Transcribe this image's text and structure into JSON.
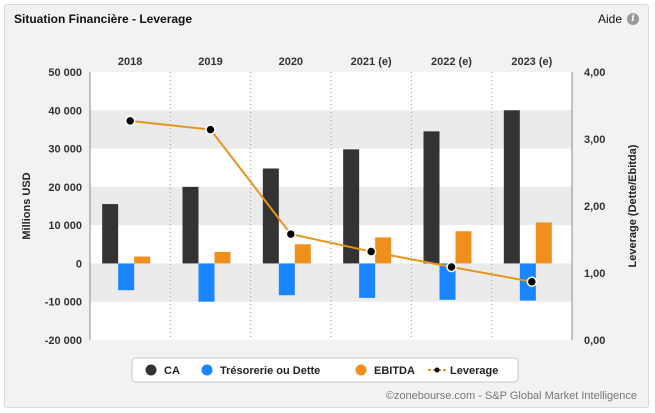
{
  "header": {
    "title": "Situation Financière - Leverage",
    "help_label": "Aide",
    "help_icon": "info-icon"
  },
  "credit": "©zonebourse.com - S&P Global Market Intelligence",
  "chart_data": {
    "type": "bar",
    "categories": [
      "2018",
      "2019",
      "2020",
      "2021 (e)",
      "2022 (e)",
      "2023 (e)"
    ],
    "y_left": {
      "label": "Millions USD",
      "range": [
        -20000,
        50000
      ],
      "ticks": [
        "-20 000",
        "-10 000",
        "0",
        "10 000",
        "20 000",
        "30 000",
        "40 000",
        "50 000"
      ]
    },
    "y_right": {
      "label": "Leverage (Dette/Ebitda)",
      "range": [
        0,
        4
      ],
      "ticks": [
        "0,00",
        "1,00",
        "2,00",
        "3,00",
        "4,00"
      ]
    },
    "series": [
      {
        "name": "CA",
        "type": "bar",
        "color": "#333333",
        "values": [
          15500,
          20000,
          24800,
          29800,
          34500,
          40000
        ]
      },
      {
        "name": "Trésorerie ou Dette",
        "type": "bar",
        "color": "#1a85ff",
        "values": [
          -7000,
          -10000,
          -8300,
          -9000,
          -9500,
          -9700
        ]
      },
      {
        "name": "EBITDA",
        "type": "bar",
        "color": "#f0901c",
        "values": [
          1800,
          3000,
          5000,
          6800,
          8400,
          10700
        ]
      },
      {
        "name": "Leverage",
        "type": "line",
        "axis": "right",
        "color": "#e8951f",
        "values": [
          3.27,
          3.14,
          1.58,
          1.32,
          1.09,
          0.87
        ]
      }
    ],
    "legend": {
      "position": "bottom"
    },
    "grid": true
  }
}
